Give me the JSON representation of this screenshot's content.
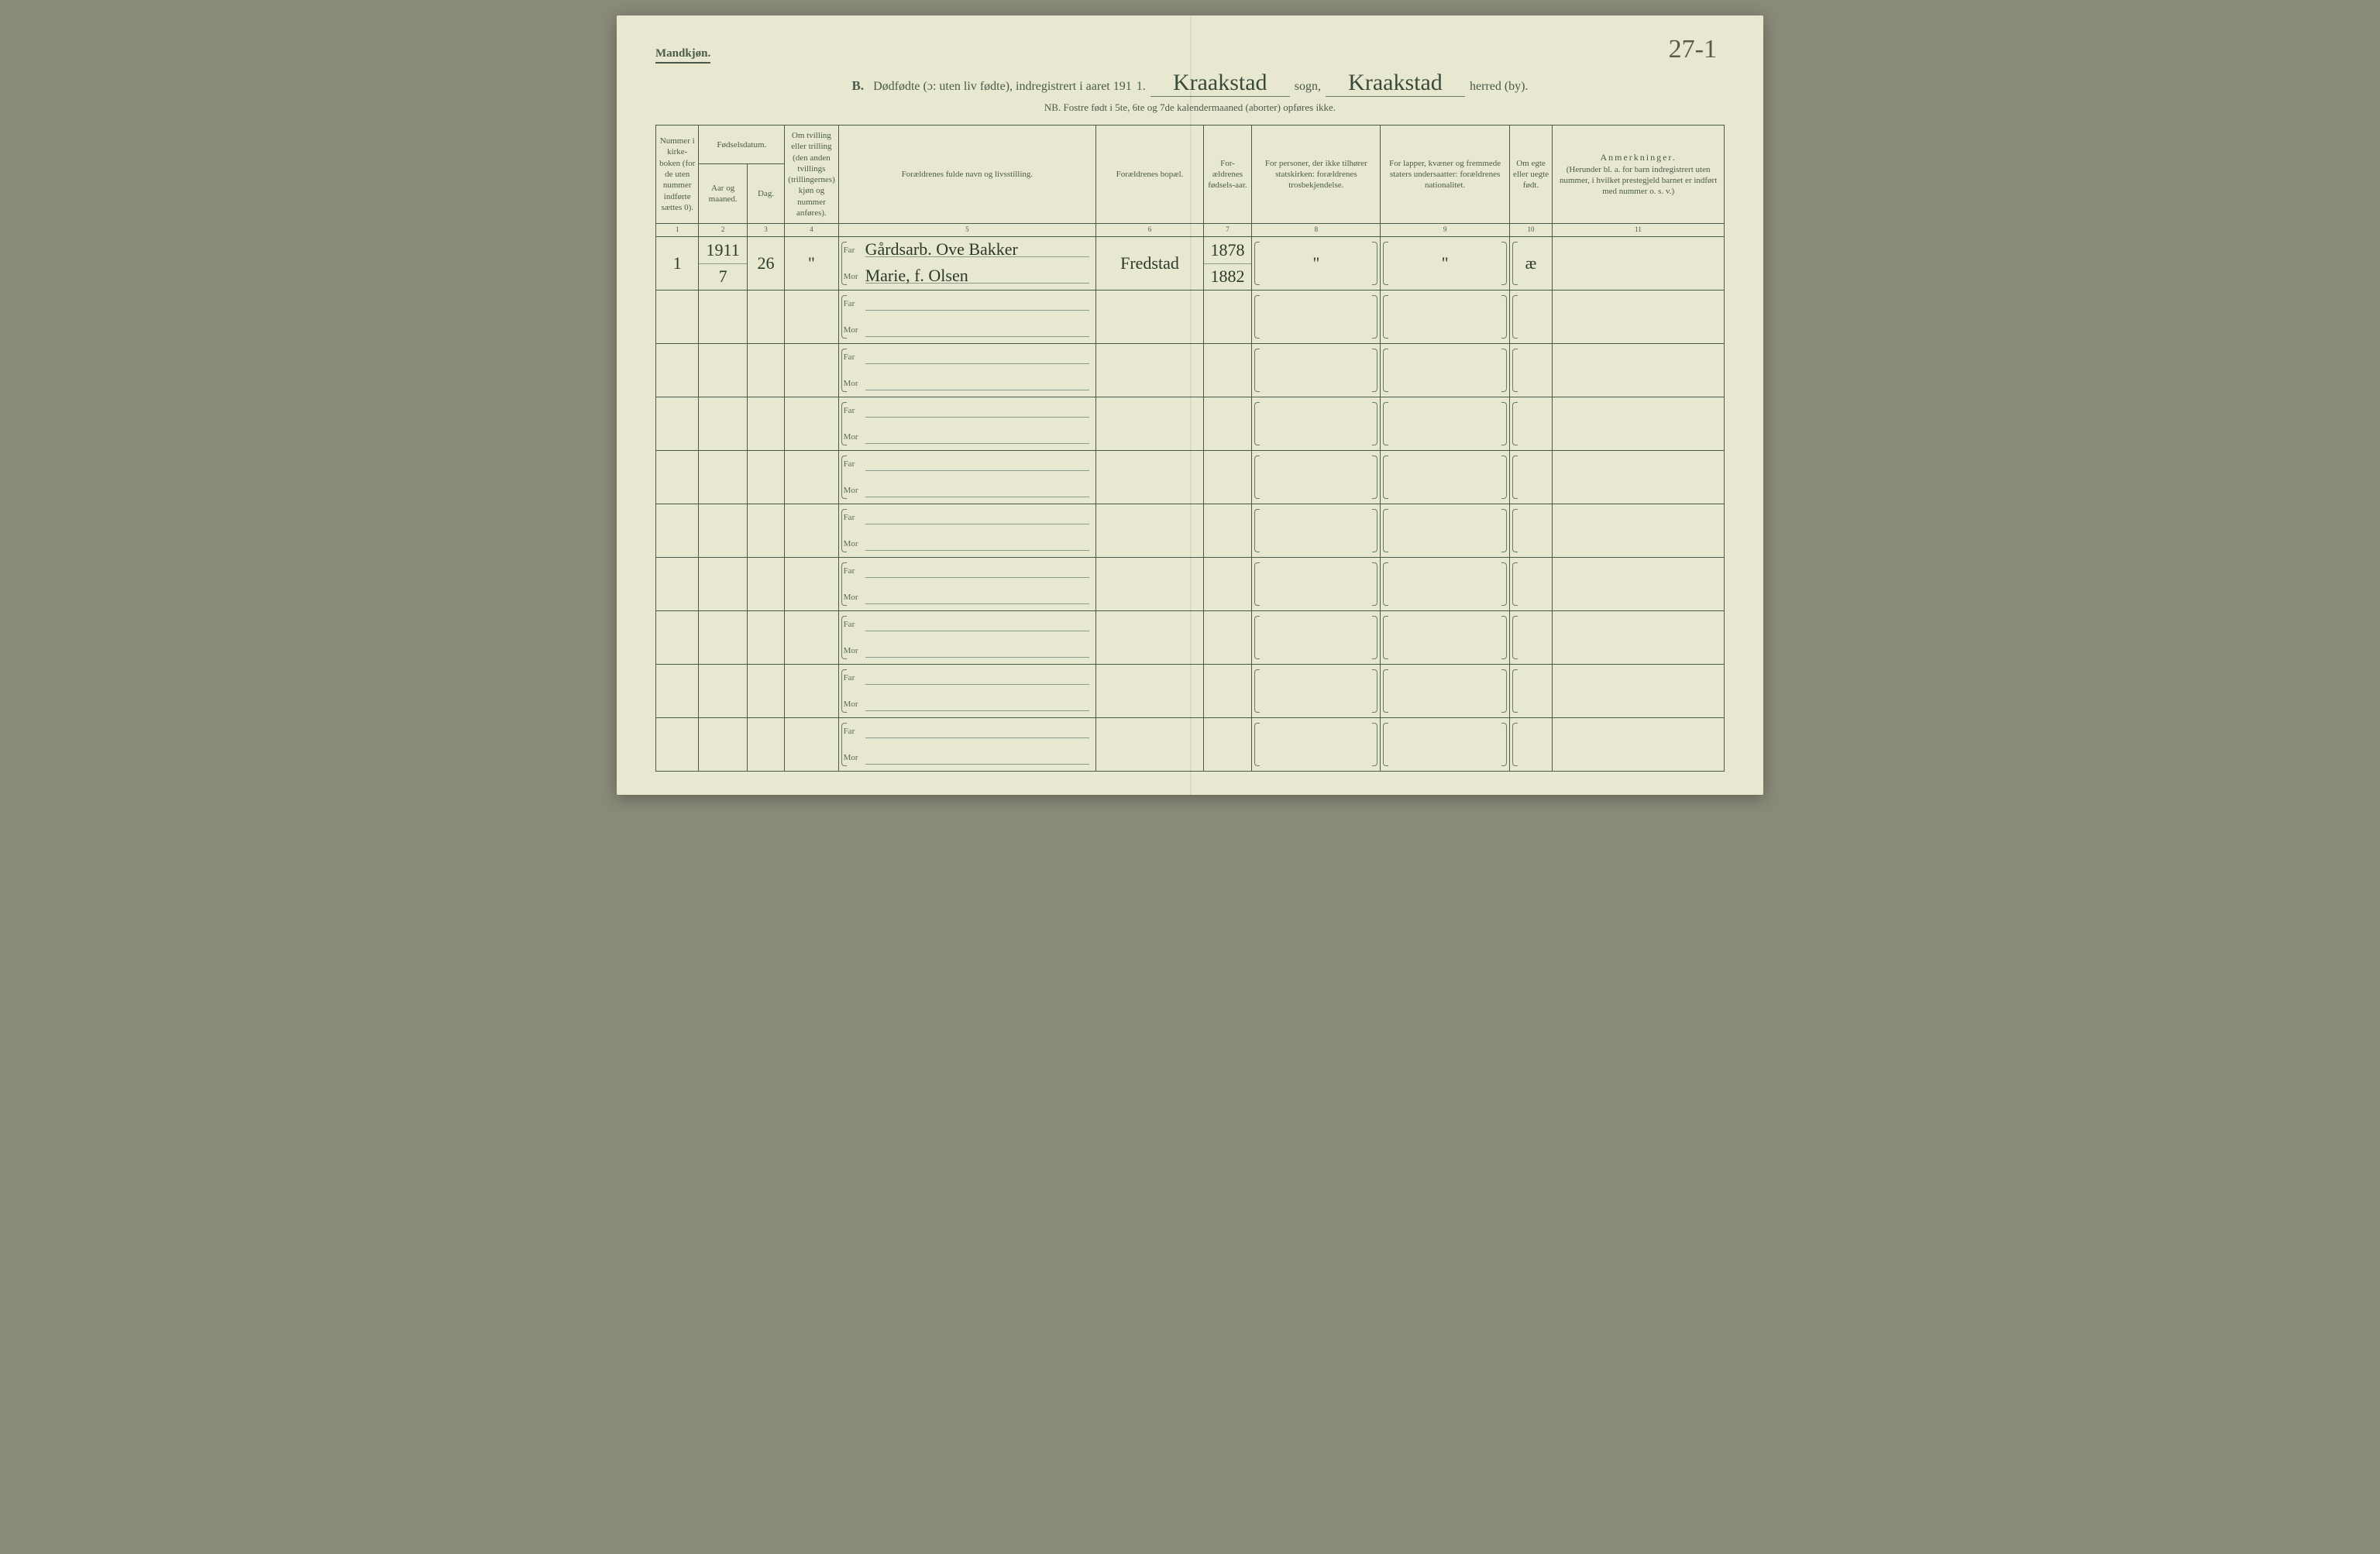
{
  "header": {
    "gender_label": "Mandkjøn.",
    "page_number_hand": "27-1",
    "title_prefix": "B.",
    "title_main": "Dødfødte (ɔ: uten liv fødte), indregistrert i aaret 191",
    "year_suffix": "1.",
    "sogn_hand": "Kraakstad",
    "sogn_label": "sogn,",
    "herred_hand": "Kraakstad",
    "herred_label": "herred (by).",
    "subtitle": "NB.  Fostre født i 5te, 6te og 7de kalendermaaned (aborter) opføres ikke."
  },
  "columns": {
    "c1": "Nummer i kirke-boken (for de uten nummer indførte sættes 0).",
    "c2_group": "Fødselsdatum.",
    "c2": "Aar og maaned.",
    "c3": "Dag.",
    "c4": "Om tvilling eller trilling (den anden tvillings (trillingernes) kjøn og nummer anføres).",
    "c5": "Forældrenes fulde navn og livsstilling.",
    "c6": "Forældrenes bopæl.",
    "c7": "For-ældrenes fødsels-aar.",
    "c8": "For personer, der ikke tilhører statskirken: forældrenes trosbekjendelse.",
    "c9": "For lapper, kvæner og fremmede staters undersaatter: forældrenes nationalitet.",
    "c10": "Om egte eller uegte født.",
    "c11_title": "Anmerkninger.",
    "c11_sub": "(Herunder bl. a. for barn indregistrert uten nummer, i hvilket prestegjeld barnet er indført med nummer o. s. v.)"
  },
  "col_numbers": [
    "1",
    "2",
    "3",
    "4",
    "5",
    "6",
    "7",
    "8",
    "9",
    "10",
    "11"
  ],
  "labels": {
    "far": "Far",
    "mor": "Mor"
  },
  "entries": [
    {
      "num": "1",
      "year": "1911",
      "month": "7",
      "day": "26",
      "twin": "\"",
      "far": "Gårdsarb. Ove Bakker",
      "mor": "Marie, f. Olsen",
      "bopal": "Fredstad",
      "far_year": "1878",
      "mor_year": "1882",
      "c8": "\"",
      "c9": "\"",
      "c10": "æ",
      "c11": ""
    }
  ],
  "blank_rows": 9,
  "colors": {
    "paper": "#e8e8d0",
    "ink": "#4a5a4a",
    "hand": "#2a3a2a",
    "rule": "#8a9a8a"
  }
}
